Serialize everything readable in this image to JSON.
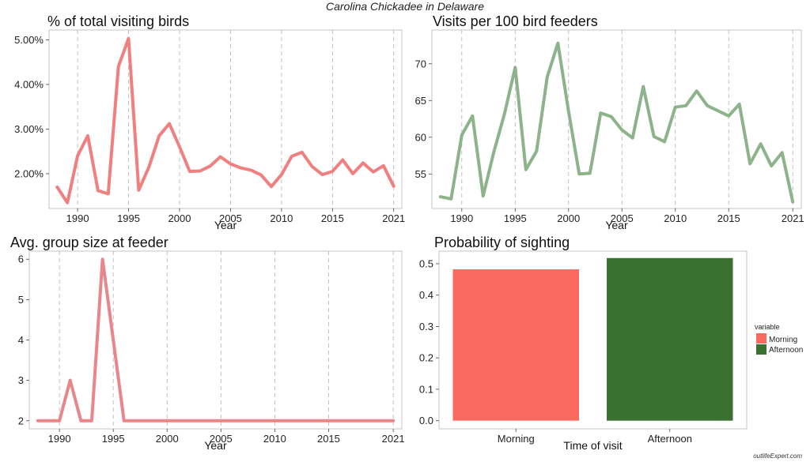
{
  "figure": {
    "suptitle": "Carolina Chickadee in Delaware",
    "credit": "outlifeExpert.com"
  },
  "chart_data": [
    {
      "id": "pct",
      "type": "line",
      "title": "% of total visiting birds",
      "xlabel": "Year",
      "ylabel": "",
      "color": "#f08080",
      "x": [
        1988,
        1989,
        1990,
        1991,
        1992,
        1993,
        1994,
        1995,
        1996,
        1997,
        1998,
        1999,
        2000,
        2001,
        2002,
        2003,
        2004,
        2005,
        2006,
        2007,
        2008,
        2009,
        2010,
        2011,
        2012,
        2013,
        2014,
        2015,
        2016,
        2017,
        2018,
        2019,
        2020,
        2021
      ],
      "values": [
        1.7,
        1.35,
        2.4,
        2.85,
        1.62,
        1.55,
        4.4,
        5.03,
        1.63,
        2.15,
        2.85,
        3.12,
        2.6,
        2.05,
        2.06,
        2.17,
        2.38,
        2.22,
        2.13,
        2.08,
        1.97,
        1.71,
        1.98,
        2.39,
        2.48,
        2.16,
        1.98,
        2.05,
        2.31,
        2.0,
        2.24,
        2.04,
        2.18,
        1.72
      ],
      "xlim": [
        1987.2,
        2021.8
      ],
      "ylim": [
        1.22,
        5.22
      ],
      "xticks": [
        1990,
        1995,
        2000,
        2005,
        2010,
        2015,
        2021
      ],
      "xtick_labels": [
        "1990",
        "1995",
        "2000",
        "2005",
        "2010",
        "2015",
        "2021"
      ],
      "yticks": [
        2,
        3,
        4,
        5
      ],
      "ytick_labels": [
        "2.00%",
        "3.00%",
        "4.00%",
        "5.00%"
      ],
      "grid": "vertical dashed"
    },
    {
      "id": "visits",
      "type": "line",
      "title": "Visits per 100 bird feeders",
      "xlabel": "Year",
      "ylabel": "",
      "color": "#8db38a",
      "x": [
        1988,
        1989,
        1990,
        1991,
        1992,
        1993,
        1994,
        1995,
        1996,
        1997,
        1998,
        1999,
        2000,
        2001,
        2002,
        2003,
        2004,
        2005,
        2006,
        2007,
        2008,
        2009,
        2010,
        2011,
        2012,
        2013,
        2014,
        2015,
        2016,
        2017,
        2018,
        2019,
        2020,
        2021
      ],
      "values": [
        51.9,
        51.6,
        60.3,
        62.9,
        52.0,
        58.0,
        63.2,
        69.5,
        55.6,
        58.1,
        68.2,
        72.8,
        63.5,
        55.0,
        55.1,
        63.3,
        62.8,
        61.0,
        59.9,
        66.9,
        60.1,
        59.4,
        64.1,
        64.3,
        66.3,
        64.3,
        63.6,
        62.9,
        64.5,
        56.4,
        59.1,
        56.1,
        57.9,
        51.2
      ],
      "xlim": [
        1987.2,
        2021.8
      ],
      "ylim": [
        50.3,
        74.6
      ],
      "xticks": [
        1990,
        1995,
        2000,
        2005,
        2010,
        2015,
        2021
      ],
      "xtick_labels": [
        "1990",
        "1995",
        "2000",
        "2005",
        "2010",
        "2015",
        "2021"
      ],
      "yticks": [
        55,
        60,
        65,
        70
      ],
      "ytick_labels": [
        "55",
        "60",
        "65",
        "70"
      ],
      "grid": "vertical dashed"
    },
    {
      "id": "group",
      "type": "line",
      "title": "Avg. group size at feeder",
      "xlabel": "Year",
      "ylabel": "",
      "color": "#e8868a",
      "x": [
        1988,
        1989,
        1990,
        1991,
        1992,
        1993,
        1994,
        1995,
        1996,
        1997,
        1998,
        1999,
        2000,
        2001,
        2002,
        2003,
        2004,
        2005,
        2006,
        2007,
        2008,
        2009,
        2010,
        2011,
        2012,
        2013,
        2014,
        2015,
        2016,
        2017,
        2018,
        2019,
        2020,
        2021
      ],
      "values": [
        2,
        2,
        2,
        3,
        2,
        2,
        6,
        4,
        2,
        2,
        2,
        2,
        2,
        2,
        2,
        2,
        2,
        2,
        2,
        2,
        2,
        2,
        2,
        2,
        2,
        2,
        2,
        2,
        2,
        2,
        2,
        2,
        2,
        2
      ],
      "xlim": [
        1987.2,
        2021.8
      ],
      "ylim": [
        1.8,
        6.2
      ],
      "xticks": [
        1990,
        1995,
        2000,
        2005,
        2010,
        2015,
        2021
      ],
      "xtick_labels": [
        "1990",
        "1995",
        "2000",
        "2005",
        "2010",
        "2015",
        "2021"
      ],
      "yticks": [
        2,
        3,
        4,
        5,
        6
      ],
      "ytick_labels": [
        "2",
        "3",
        "4",
        "5",
        "6"
      ],
      "grid": "vertical dashed"
    },
    {
      "id": "prob",
      "type": "bar",
      "title": "Probability of sighting",
      "xlabel": "Time of visit",
      "ylabel": "",
      "categories": [
        "Morning",
        "Afternoon"
      ],
      "values": [
        0.482,
        0.518
      ],
      "colors": [
        "#fa6a5e",
        "#3a7030"
      ],
      "ylim": [
        -0.026,
        0.54
      ],
      "yticks": [
        0.0,
        0.1,
        0.2,
        0.3,
        0.4,
        0.5
      ],
      "ytick_labels": [
        "0.0",
        "0.1",
        "0.2",
        "0.3",
        "0.4",
        "0.5"
      ],
      "legend": {
        "title": "variable",
        "placement": "right",
        "entries": [
          "Morning",
          "Afternoon"
        ]
      },
      "grid": "none"
    }
  ]
}
